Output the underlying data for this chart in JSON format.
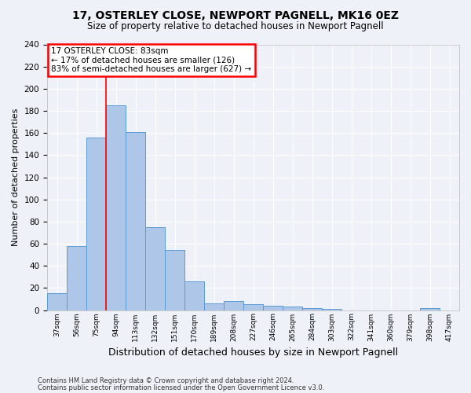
{
  "title": "17, OSTERLEY CLOSE, NEWPORT PAGNELL, MK16 0EZ",
  "subtitle": "Size of property relative to detached houses in Newport Pagnell",
  "xlabel": "Distribution of detached houses by size in Newport Pagnell",
  "ylabel": "Number of detached properties",
  "categories": [
    "37sqm",
    "56sqm",
    "75sqm",
    "94sqm",
    "113sqm",
    "132sqm",
    "151sqm",
    "170sqm",
    "189sqm",
    "208sqm",
    "227sqm",
    "246sqm",
    "265sqm",
    "284sqm",
    "303sqm",
    "322sqm",
    "341sqm",
    "360sqm",
    "379sqm",
    "398sqm",
    "417sqm"
  ],
  "values": [
    15,
    58,
    156,
    185,
    161,
    75,
    54,
    26,
    6,
    8,
    5,
    4,
    3,
    2,
    1,
    0,
    0,
    0,
    0,
    2,
    0
  ],
  "bar_color": "#aec6e8",
  "bar_edge_color": "#5b9bd5",
  "annotation_text": "17 OSTERLEY CLOSE: 83sqm\n← 17% of detached houses are smaller (126)\n83% of semi-detached houses are larger (627) →",
  "annotation_box_color": "white",
  "annotation_box_edge_color": "red",
  "vline_bar_index": 2,
  "vline_color": "red",
  "ylim": [
    0,
    240
  ],
  "yticks": [
    0,
    20,
    40,
    60,
    80,
    100,
    120,
    140,
    160,
    180,
    200,
    220,
    240
  ],
  "footer_line1": "Contains HM Land Registry data © Crown copyright and database right 2024.",
  "footer_line2": "Contains public sector information licensed under the Open Government Licence v3.0.",
  "background_color": "#eef2f8",
  "grid_color": "white",
  "title_fontsize": 10,
  "subtitle_fontsize": 8.5,
  "ylabel_fontsize": 8,
  "xlabel_fontsize": 9
}
